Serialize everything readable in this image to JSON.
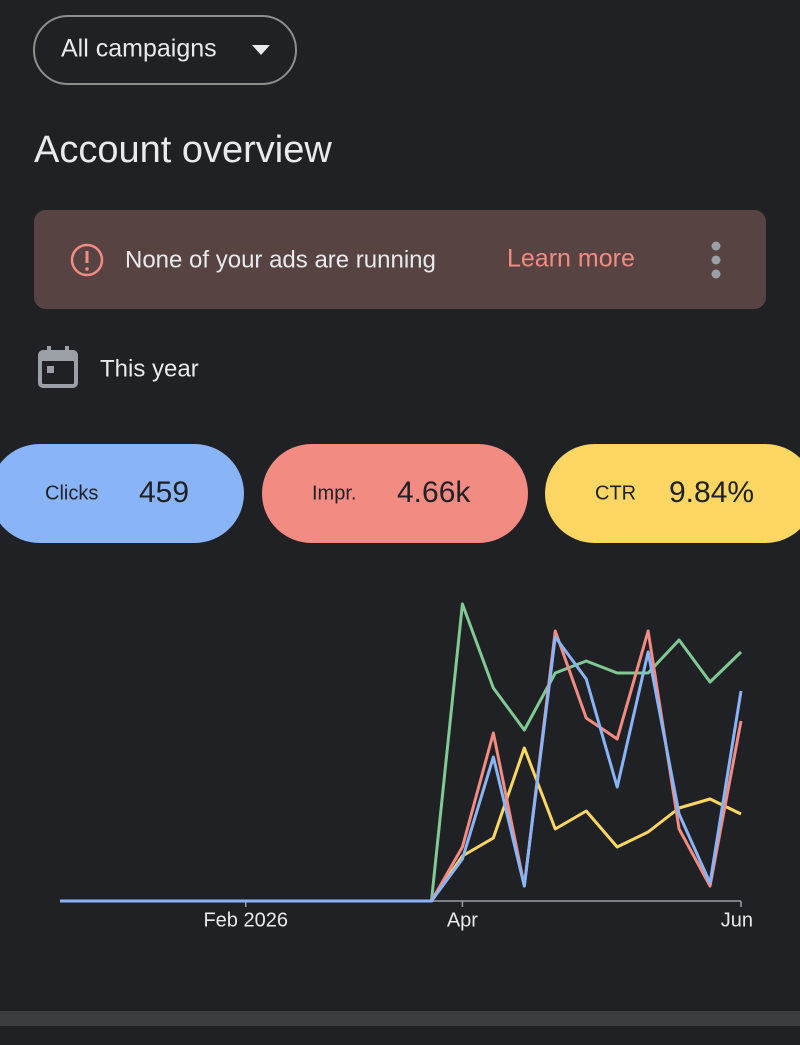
{
  "header": {
    "dropdown": "All campaigns",
    "title": "Account overview"
  },
  "banner": {
    "message": "None of your ads are running",
    "action": "Learn more"
  },
  "date_range": "This year",
  "metrics": [
    {
      "label": "Clicks",
      "value": "459",
      "color": "#8ab4f8"
    },
    {
      "label": "Impr.",
      "value": "4.66k",
      "color": "#f28b82"
    },
    {
      "label": "CTR",
      "value": "9.84%",
      "color": "#fdd663"
    }
  ],
  "chart_data": {
    "type": "line",
    "categories": [
      null,
      null,
      null,
      null,
      null,
      null,
      "Feb 2026",
      null,
      null,
      null,
      null,
      null,
      null,
      "Apr",
      null,
      null,
      null,
      null,
      null,
      null,
      null,
      null,
      "Jun"
    ],
    "ylim": [
      0,
      100
    ],
    "series": [
      {
        "color": "#81c995",
        "values": [
          0,
          0,
          0,
          0,
          0,
          0,
          0,
          0,
          0,
          0,
          0,
          0,
          0,
          99,
          71,
          57,
          76,
          80,
          76,
          76,
          87,
          73,
          83
        ]
      },
      {
        "color": "#fdd663",
        "values": [
          0,
          0,
          0,
          0,
          0,
          0,
          0,
          0,
          0,
          0,
          0,
          0,
          0,
          15,
          21,
          51,
          24,
          30,
          18,
          23,
          31,
          34,
          29
        ]
      },
      {
        "color": "#f28b82",
        "values": [
          0,
          0,
          0,
          0,
          0,
          0,
          0,
          0,
          0,
          0,
          0,
          0,
          0,
          18,
          56,
          5,
          90,
          61,
          54,
          90,
          24,
          5,
          60
        ]
      },
      {
        "color": "#8ab4f8",
        "values": [
          0,
          0,
          0,
          0,
          0,
          0,
          0,
          0,
          0,
          0,
          0,
          0,
          0,
          14,
          48,
          5,
          88,
          74,
          38,
          83,
          29,
          6,
          70
        ]
      }
    ]
  }
}
